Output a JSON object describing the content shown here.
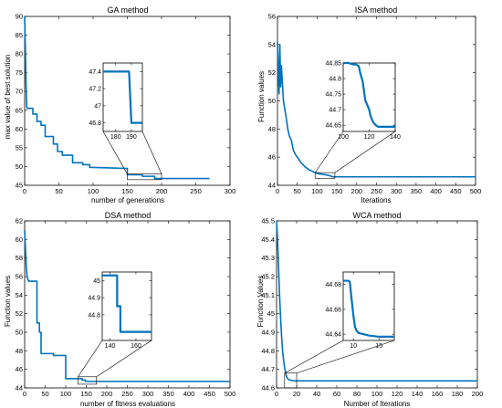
{
  "colors": {
    "series": "#0072BD",
    "axis": "#000000",
    "background": "#ffffff"
  },
  "chart_data": [
    {
      "type": "line",
      "title": "GA method",
      "xlabel": "number of generations",
      "ylabel": "max value of best solution",
      "xlim": [
        0,
        300
      ],
      "ylim": [
        45,
        90
      ],
      "xticks": [
        0,
        50,
        100,
        150,
        200,
        250,
        300
      ],
      "xtick_labels": [
        "0",
        "50",
        "100",
        "150",
        "200",
        "250",
        "300"
      ],
      "yticks": [
        45,
        50,
        55,
        60,
        65,
        70,
        75,
        80,
        85,
        90
      ],
      "ytick_labels": [
        "45",
        "50",
        "55",
        "60",
        "65",
        "70",
        "75",
        "80",
        "85",
        "90"
      ],
      "series": [
        {
          "x": [
            0,
            1,
            2,
            3,
            4,
            5,
            6,
            12,
            12,
            18,
            18,
            24,
            24,
            30,
            30,
            42,
            42,
            48,
            48,
            55,
            55,
            70,
            70,
            85,
            85,
            95,
            95,
            150,
            150,
            172,
            172,
            190,
            190,
            270
          ],
          "y": [
            90,
            82,
            72,
            66,
            65.5,
            65.5,
            65.5,
            65.5,
            64,
            64,
            62,
            62,
            61,
            61,
            58,
            58,
            56,
            56,
            54,
            54,
            53,
            53,
            51,
            51,
            50.5,
            50.5,
            49.8,
            49.5,
            47.8,
            47.8,
            47.4,
            47.4,
            46.8,
            46.8
          ]
        }
      ],
      "inset": {
        "xlim": [
          172,
          197
        ],
        "ylim": [
          46.7,
          47.5
        ],
        "xticks": [
          180,
          190
        ],
        "xtick_labels": [
          "180",
          "190"
        ],
        "yticks": [
          46.8,
          47,
          47.2,
          47.4
        ],
        "ytick_labels": [
          "46.8",
          "47",
          "47.2",
          "47.4"
        ],
        "series": {
          "x": [
            172,
            188.5,
            190,
            197
          ],
          "y": [
            47.4,
            47.4,
            46.8,
            46.8
          ]
        },
        "zoom_region": {
          "x": [
            150,
            200
          ],
          "y": [
            46.5,
            48
          ]
        }
      }
    },
    {
      "type": "line",
      "title": "ISA method",
      "xlabel": "Iterations",
      "ylabel": "Function values",
      "xlim": [
        0,
        500
      ],
      "ylim": [
        44,
        56
      ],
      "xticks": [
        0,
        50,
        100,
        150,
        200,
        250,
        300,
        350,
        400,
        450,
        500
      ],
      "xtick_labels": [
        "0",
        "50",
        "100",
        "150",
        "200",
        "250",
        "300",
        "350",
        "400",
        "450",
        "500"
      ],
      "yticks": [
        44,
        46,
        48,
        50,
        52,
        54,
        56
      ],
      "ytick_labels": [
        "44",
        "46",
        "48",
        "50",
        "52",
        "54",
        "56"
      ],
      "series": [
        {
          "x": [
            0,
            2,
            4,
            6,
            8,
            10,
            12,
            15,
            18,
            22,
            26,
            30,
            35,
            40,
            45,
            50,
            55,
            60,
            70,
            80,
            95,
            100,
            110,
            120,
            130,
            140,
            200,
            300,
            400,
            500
          ],
          "y": [
            54.2,
            52.3,
            50.5,
            54.0,
            51.0,
            52.5,
            51.5,
            50.0,
            49.5,
            48.8,
            48.0,
            47.5,
            47.2,
            46.5,
            46.2,
            46.0,
            45.8,
            45.6,
            45.3,
            45.1,
            44.9,
            44.85,
            44.8,
            44.75,
            44.7,
            44.6,
            44.6,
            44.6,
            44.6,
            44.6
          ]
        }
      ],
      "inset": {
        "xlim": [
          100,
          140
        ],
        "ylim": [
          44.63,
          44.85
        ],
        "xticks": [
          100,
          120,
          140
        ],
        "xtick_labels": [
          "100",
          "120",
          "140"
        ],
        "yticks": [
          44.65,
          44.7,
          44.75,
          44.8,
          44.85
        ],
        "ytick_labels": [
          "44.65",
          "44.7",
          "44.75",
          "44.8",
          "44.85"
        ],
        "series": {
          "x": [
            100,
            104,
            108,
            110,
            112,
            113,
            115,
            116,
            117,
            119,
            120,
            121,
            123,
            125,
            127,
            140
          ],
          "y": [
            44.85,
            44.85,
            44.845,
            44.845,
            44.84,
            44.82,
            44.79,
            44.76,
            44.73,
            44.71,
            44.7,
            44.68,
            44.66,
            44.65,
            44.645,
            44.645
          ]
        },
        "zoom_region": {
          "x": [
            95,
            145
          ],
          "y": [
            44.5,
            44.9
          ]
        }
      }
    },
    {
      "type": "line",
      "title": "DSA method",
      "xlabel": "number of fitness evaluations",
      "ylabel": "Function values",
      "xlim": [
        0,
        500
      ],
      "ylim": [
        44,
        62
      ],
      "xticks": [
        0,
        50,
        100,
        150,
        200,
        250,
        300,
        350,
        400,
        450,
        500
      ],
      "xtick_labels": [
        "0",
        "50",
        "100",
        "150",
        "200",
        "250",
        "300",
        "350",
        "400",
        "450",
        "500"
      ],
      "yticks": [
        44,
        46,
        48,
        50,
        52,
        54,
        56,
        58,
        60,
        62
      ],
      "ytick_labels": [
        "44",
        "46",
        "48",
        "50",
        "52",
        "54",
        "56",
        "58",
        "60",
        "62"
      ],
      "series": [
        {
          "x": [
            0,
            2,
            4,
            6,
            8,
            10,
            30,
            30,
            36,
            36,
            40,
            40,
            70,
            70,
            100,
            100,
            140,
            140,
            148,
            148,
            500
          ],
          "y": [
            61,
            59,
            57,
            56,
            55.7,
            55.5,
            55.5,
            51,
            51,
            50,
            50,
            47.7,
            47.7,
            47.5,
            47.5,
            45,
            45,
            44.85,
            44.85,
            44.7,
            44.7
          ]
        }
      ],
      "inset": {
        "xlim": [
          134,
          172
        ],
        "ylim": [
          44.65,
          45.05
        ],
        "xticks": [
          140,
          160
        ],
        "xtick_labels": [
          "140",
          "160"
        ],
        "yticks": [
          44.8,
          44.9,
          45
        ],
        "ytick_labels": [
          "44.8",
          "44.9",
          "45"
        ],
        "series": {
          "x": [
            134,
            145.5,
            145.5,
            148,
            148,
            172
          ],
          "y": [
            45.03,
            45.03,
            44.85,
            44.85,
            44.7,
            44.7
          ]
        },
        "zoom_region": {
          "x": [
            130,
            175
          ],
          "y": [
            44.4,
            45.2
          ]
        }
      }
    },
    {
      "type": "line",
      "title": "WCA method",
      "xlabel": "Number of Iterations",
      "ylabel": "Function Values",
      "xlim": [
        0,
        200
      ],
      "ylim": [
        44.6,
        45.5
      ],
      "xticks": [
        0,
        20,
        40,
        60,
        80,
        100,
        120,
        140,
        160,
        180,
        200
      ],
      "xtick_labels": [
        "0",
        "20",
        "40",
        "60",
        "80",
        "100",
        "120",
        "140",
        "160",
        "180",
        "200"
      ],
      "yticks": [
        44.6,
        44.7,
        44.8,
        44.9,
        45,
        45.1,
        45.2,
        45.3,
        45.4,
        45.5
      ],
      "ytick_labels": [
        "44.6",
        "44.7",
        "44.8",
        "44.9",
        "45",
        "45.1",
        "45.2",
        "45.3",
        "45.4",
        "45.5"
      ],
      "series": [
        {
          "x": [
            0,
            1,
            2,
            3,
            4,
            5,
            6,
            7,
            8,
            9,
            10,
            11,
            12,
            15,
            18,
            200
          ],
          "y": [
            45.5,
            45.4,
            45.25,
            45.1,
            44.98,
            44.88,
            44.8,
            44.75,
            44.71,
            44.68,
            44.66,
            44.65,
            44.645,
            44.64,
            44.638,
            44.638
          ]
        }
      ],
      "inset": {
        "xlim": [
          8,
          18
        ],
        "ylim": [
          44.635,
          44.69
        ],
        "xticks": [
          10,
          15
        ],
        "xtick_labels": [
          "10",
          "15"
        ],
        "yticks": [
          44.64,
          44.66,
          44.68
        ],
        "ytick_labels": [
          "44.64",
          "44.66",
          "44.68"
        ],
        "series": {
          "x": [
            8,
            9,
            9.3,
            9.6,
            10,
            10.3,
            10.6,
            11,
            12,
            13,
            15,
            18
          ],
          "y": [
            44.683,
            44.683,
            44.682,
            44.67,
            44.655,
            44.646,
            44.643,
            44.641,
            44.64,
            44.639,
            44.638,
            44.638
          ]
        },
        "zoom_region": {
          "x": [
            8,
            20
          ],
          "y": [
            44.6,
            44.68
          ]
        }
      }
    }
  ]
}
